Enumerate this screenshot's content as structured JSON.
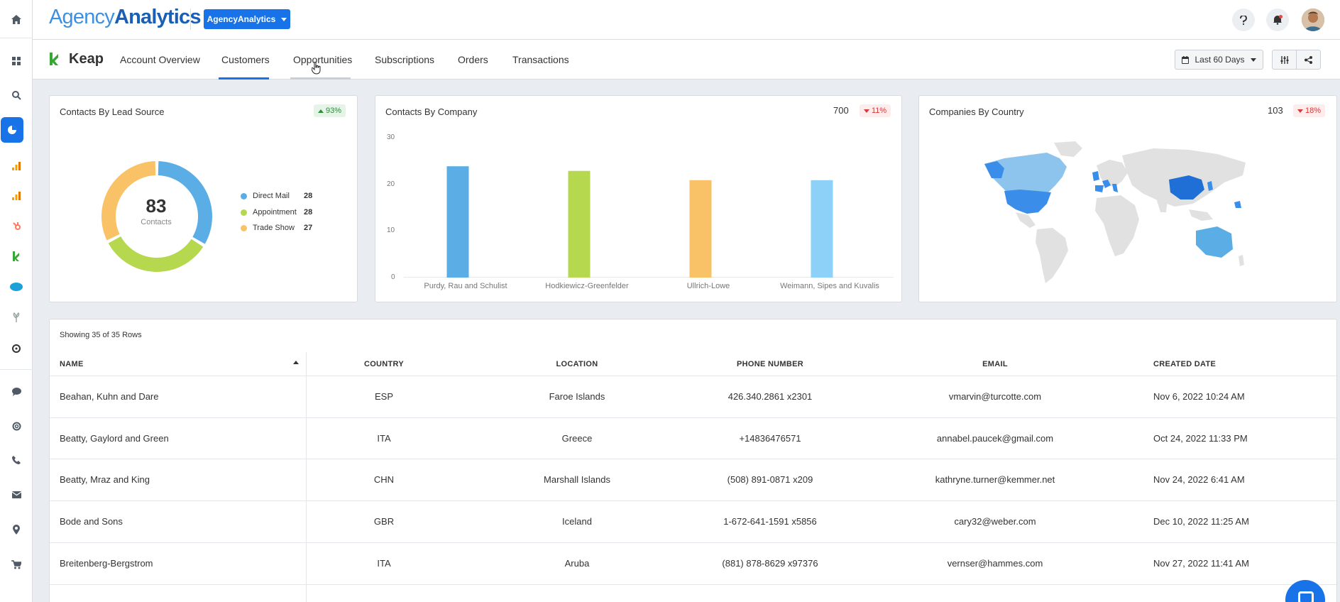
{
  "header": {
    "logo_light": "Agency",
    "logo_bold": "Analytics",
    "brand_button": "AgencyAnalytics",
    "help_icon": "help-icon",
    "bell_icon": "bell-icon"
  },
  "subnav": {
    "integration": "Keap",
    "tabs": [
      {
        "label": "Account Overview"
      },
      {
        "label": "Customers"
      },
      {
        "label": "Opportunities"
      },
      {
        "label": "Subscriptions"
      },
      {
        "label": "Orders"
      },
      {
        "label": "Transactions"
      }
    ],
    "active_tab": "Customers",
    "hover_tab": "Opportunities",
    "date_range": "Last 60 Days"
  },
  "colors": {
    "accent": "#1973e8",
    "direct_mail": "#5aaee5",
    "appointment": "#b5d84f",
    "trade_show": "#f9c267",
    "light_blue": "#8dd0f8"
  },
  "lead_source": {
    "title": "Contacts By Lead Source",
    "change": "93%",
    "total": "83",
    "total_label": "Contacts",
    "legend": [
      {
        "label": "Direct Mail",
        "value": "28"
      },
      {
        "label": "Appointment",
        "value": "28"
      },
      {
        "label": "Trade Show",
        "value": "27"
      }
    ]
  },
  "company_card": {
    "title": "Contacts By Company",
    "total": "700",
    "change": "11%"
  },
  "country_card": {
    "title": "Companies By Country",
    "total": "103",
    "change": "18%"
  },
  "chart_data": [
    {
      "type": "pie",
      "categories": [
        "Direct Mail",
        "Appointment",
        "Trade Show"
      ],
      "values": [
        28,
        28,
        27
      ]
    },
    {
      "type": "bar",
      "categories": [
        "Purdy, Rau and Schulist",
        "Hodkiewicz-Greenfelder",
        "Ullrich-Lowe",
        "Weimann, Sipes and Kuvalis"
      ],
      "values": [
        24,
        23,
        21,
        21
      ],
      "ylim": [
        0,
        30
      ],
      "yticks": [
        "30",
        "20",
        "10",
        "0"
      ]
    }
  ],
  "table": {
    "row_count": "Showing 35 of 35 Rows",
    "columns": [
      "NAME",
      "COUNTRY",
      "LOCATION",
      "PHONE NUMBER",
      "EMAIL",
      "CREATED DATE"
    ],
    "rows": [
      [
        "Beahan, Kuhn and Dare",
        "ESP",
        "Faroe Islands",
        "426.340.2861 x2301",
        "vmarvin@turcotte.com",
        "Nov 6, 2022 10:24 AM"
      ],
      [
        "Beatty, Gaylord and Green",
        "ITA",
        "Greece",
        "+14836476571",
        "annabel.paucek@gmail.com",
        "Oct 24, 2022 11:33 PM"
      ],
      [
        "Beatty, Mraz and King",
        "CHN",
        "Marshall Islands",
        "(508) 891-0871 x209",
        "kathryne.turner@kemmer.net",
        "Nov 24, 2022 6:41 AM"
      ],
      [
        "Bode and Sons",
        "GBR",
        "Iceland",
        "1-672-641-1591 x5856",
        "cary32@weber.com",
        "Dec 10, 2022 11:25 AM"
      ],
      [
        "Breitenberg-Bergstrom",
        "ITA",
        "Aruba",
        "(881) 878-8629 x97376",
        "vernser@hammes.com",
        "Nov 27, 2022 11:41 AM"
      ]
    ]
  }
}
